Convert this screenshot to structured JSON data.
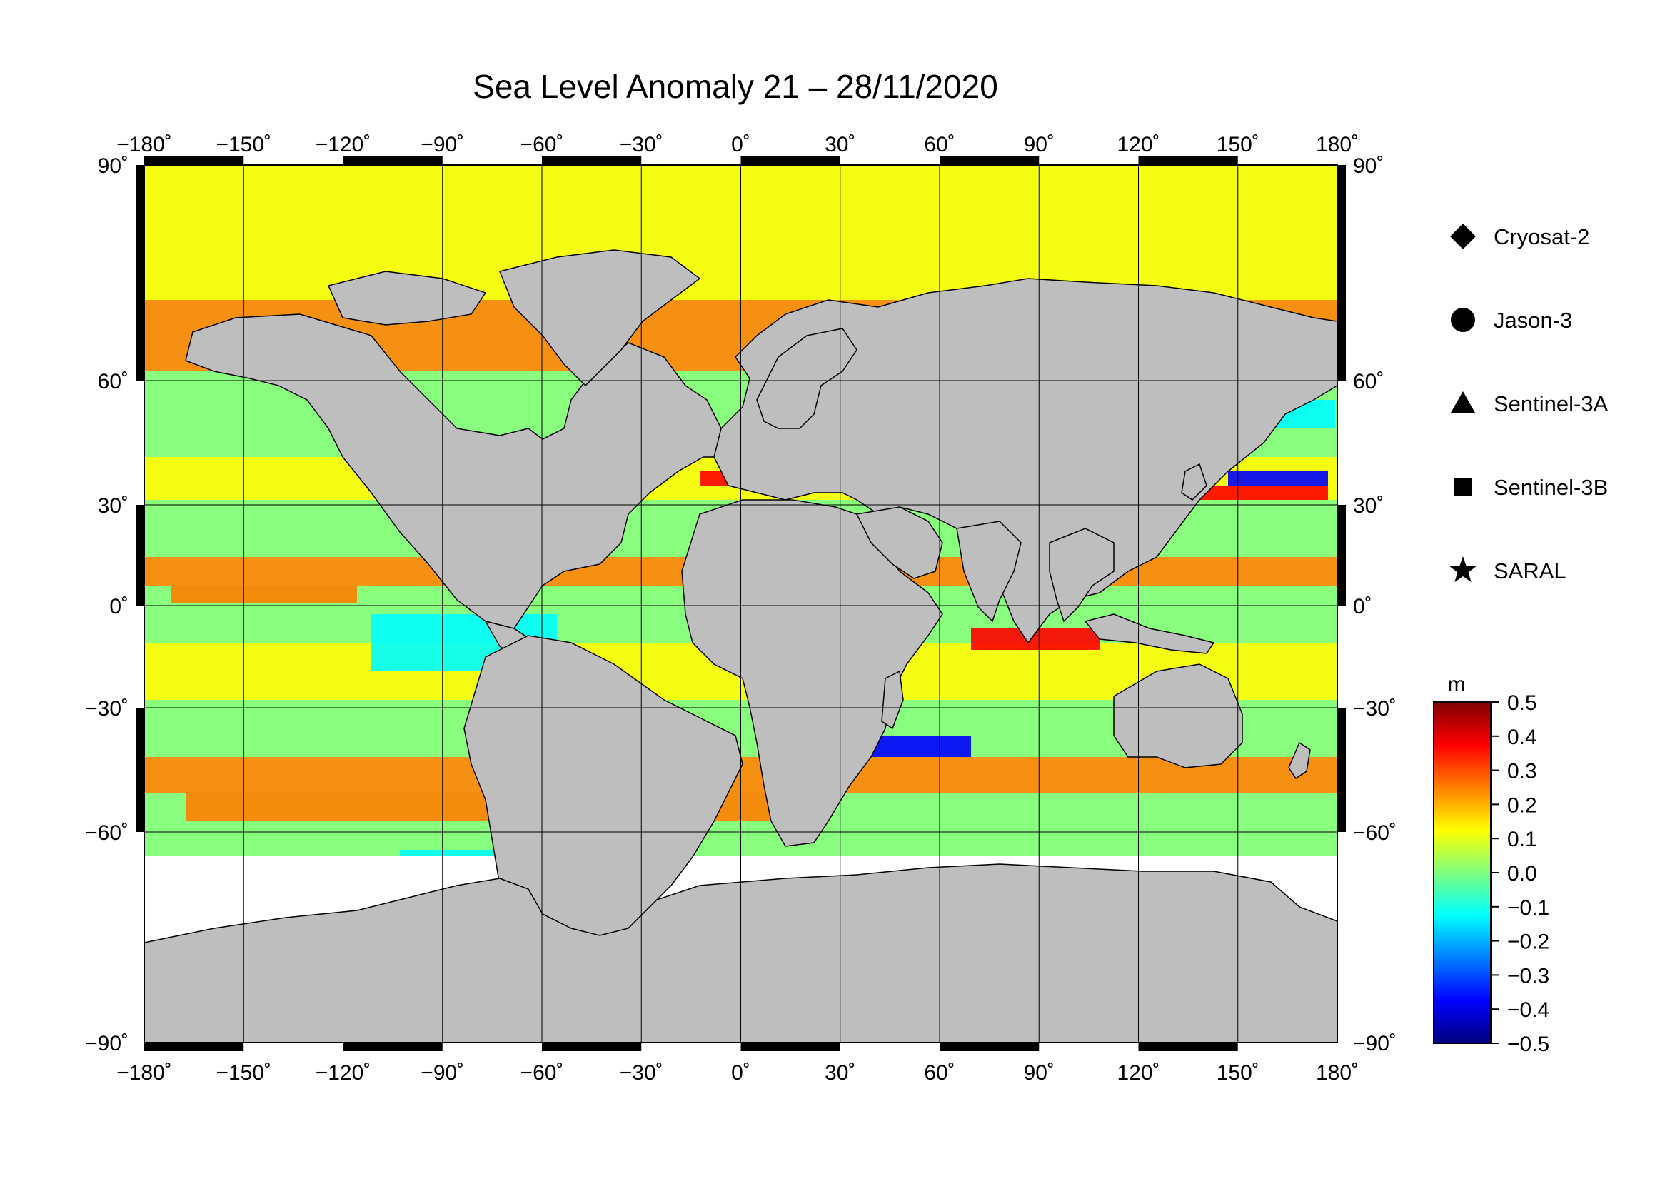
{
  "title": "Sea Level Anomaly 21 – 28/11/2020",
  "lon_ticks": [
    {
      "value": -180,
      "label": "−180˚"
    },
    {
      "value": -150,
      "label": "−150˚"
    },
    {
      "value": -120,
      "label": "−120˚"
    },
    {
      "value": -90,
      "label": "−90˚"
    },
    {
      "value": -60,
      "label": "−60˚"
    },
    {
      "value": -30,
      "label": "−30˚"
    },
    {
      "value": 0,
      "label": "0˚"
    },
    {
      "value": 30,
      "label": "30˚"
    },
    {
      "value": 60,
      "label": "60˚"
    },
    {
      "value": 90,
      "label": "90˚"
    },
    {
      "value": 120,
      "label": "120˚"
    },
    {
      "value": 150,
      "label": "150˚"
    },
    {
      "value": 180,
      "label": "180˚"
    }
  ],
  "lat_ticks": [
    {
      "value": 90,
      "label": "90˚"
    },
    {
      "value": 60,
      "label": "60˚"
    },
    {
      "value": 30,
      "label": "30˚"
    },
    {
      "value": 0,
      "label": "0˚"
    },
    {
      "value": -30,
      "label": "−30˚"
    },
    {
      "value": -60,
      "label": "−60˚"
    },
    {
      "value": -90,
      "label": "−90˚"
    }
  ],
  "map": {
    "projection": "mercator",
    "lon_range": [
      -180,
      180
    ],
    "lat_range": [
      -90,
      90
    ],
    "land_color": "#bebebe",
    "ice_color": "#ffffff"
  },
  "legend": {
    "items": [
      {
        "label": "Cryosat-2",
        "icon": "diamond-icon"
      },
      {
        "label": "Jason-3",
        "icon": "circle-icon"
      },
      {
        "label": "Sentinel-3A",
        "icon": "triangle-icon"
      },
      {
        "label": "Sentinel-3B",
        "icon": "square-icon"
      },
      {
        "label": "SARAL",
        "icon": "star-icon"
      }
    ]
  },
  "colorbar": {
    "unit": "m",
    "range": [
      -0.5,
      0.5
    ],
    "ticks": [
      {
        "value": 0.5,
        "label": "0.5"
      },
      {
        "value": 0.4,
        "label": "0.4"
      },
      {
        "value": 0.3,
        "label": "0.3"
      },
      {
        "value": 0.2,
        "label": "0.2"
      },
      {
        "value": 0.1,
        "label": "0.1"
      },
      {
        "value": 0.0,
        "label": "0.0"
      },
      {
        "value": -0.1,
        "label": "−0.1"
      },
      {
        "value": -0.2,
        "label": "−0.2"
      },
      {
        "value": -0.3,
        "label": "−0.3"
      },
      {
        "value": -0.4,
        "label": "−0.4"
      },
      {
        "value": -0.5,
        "label": "−0.5"
      }
    ],
    "colors": [
      "#00007f",
      "#0000ff",
      "#007fff",
      "#00ffff",
      "#7fff7f",
      "#ffff00",
      "#ff7f00",
      "#ff0000",
      "#7f0000"
    ]
  }
}
